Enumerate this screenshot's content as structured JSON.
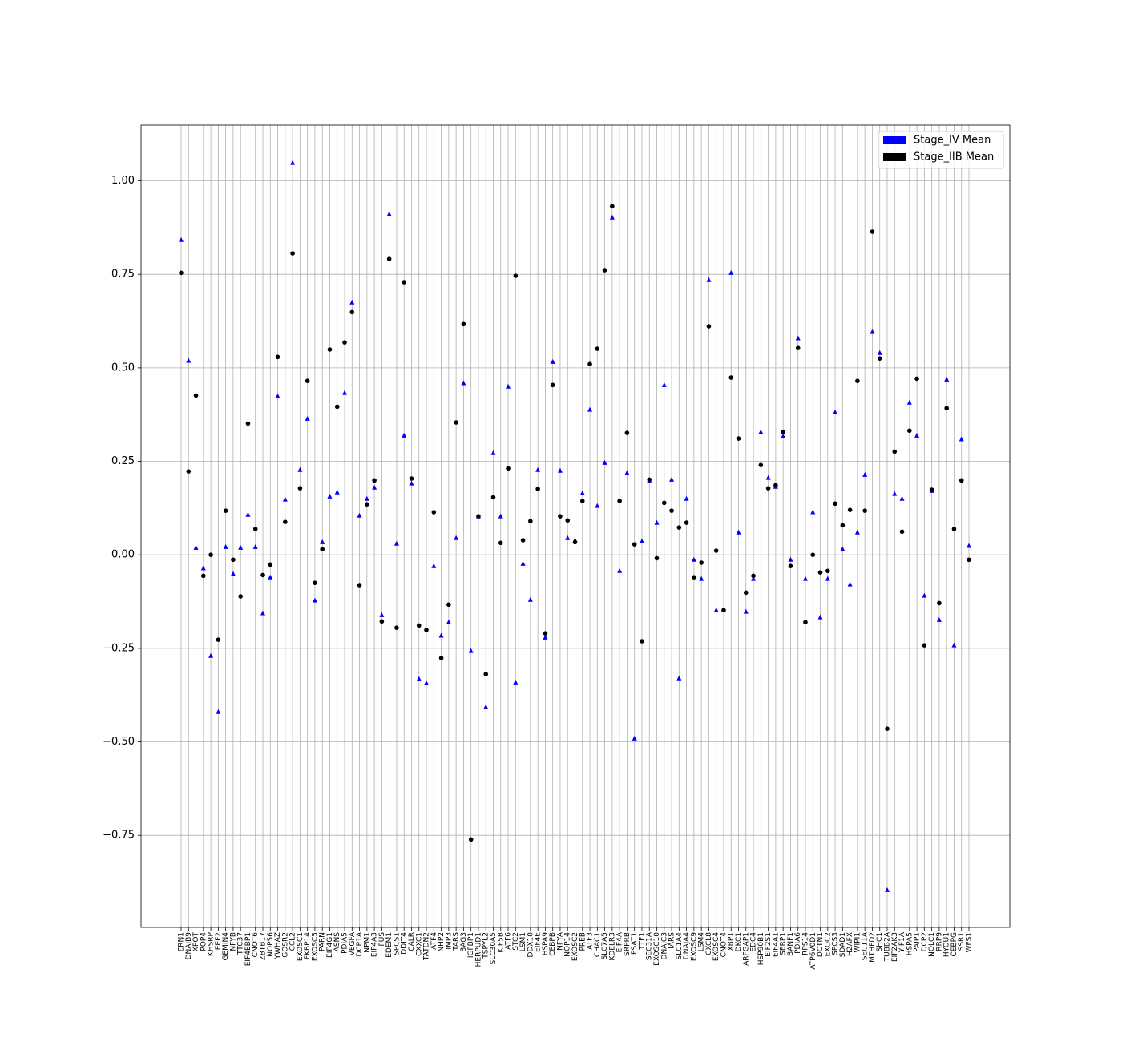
{
  "chart_data": {
    "type": "scatter",
    "categories": [
      "ERN1",
      "DNAJB9",
      "XPOT",
      "POP4",
      "KHSRP",
      "EEF2",
      "GEMIN4",
      "NFYB",
      "TTC37",
      "EIF4EBP1",
      "CNOT6",
      "ZBTB17",
      "NOP56",
      "YWHAZ",
      "GOSR2",
      "CCL2",
      "EXOSC1",
      "FKBP14",
      "EXOSC5",
      "PARN",
      "EIF4G1",
      "ASNS",
      "PDIA5",
      "VEGFA",
      "DCP1A",
      "NPM1",
      "EIF4A3",
      "FUS",
      "EDEM1",
      "SPCS1",
      "DDIT4",
      "CALR",
      "CXXC1",
      "TATDN2",
      "ATF4",
      "NHP2",
      "IMP3",
      "TARS",
      "BAG3",
      "IGFBP1",
      "HERPUD1",
      "TSPYL2",
      "SLC30A5",
      "KIF5B",
      "ATF6",
      "STC2",
      "LSM1",
      "DDX10",
      "EIF4E",
      "HSPA9",
      "CEBPB",
      "NFYA",
      "NOP14",
      "EXOSC2",
      "PREB",
      "ATF3",
      "CHAC1",
      "SLC7A5",
      "KDELR3",
      "EIF4A",
      "SRPRB",
      "PSAT1",
      "TTF1",
      "SEC31A",
      "EXOSC10",
      "DNAJC3",
      "IARS",
      "SLC1A4",
      "DNAJA4",
      "EXOSC9",
      "LSM4",
      "CXCL8",
      "EXOSC4",
      "CNOT4",
      "XBP1",
      "DKC1",
      "ARFGAP1",
      "EDC4",
      "HSP90B1",
      "EIF2S1",
      "EIF4A1",
      "SERP1",
      "BANF1",
      "PDIA6",
      "RPS14",
      "ATP6V0D1",
      "DCTN1",
      "EXOC2",
      "SPCS3",
      "SDAD1",
      "H2AFX",
      "WIPI1",
      "SEC11A",
      "MTHFD2",
      "SHC1",
      "TUBB2A",
      "EIF2AK3",
      "YIF1A",
      "HSPA5",
      "PAIP1",
      "DCP2",
      "NOLC1",
      "RRP9",
      "HYOU1",
      "CEBPG",
      "SSR1",
      "WFS1"
    ],
    "series": [
      {
        "name": "Stage_IV Mean",
        "color": "#0000ff",
        "marker": "triangle",
        "values": [
          0.842,
          0.519,
          0.019,
          -0.036,
          -0.27,
          -0.42,
          0.021,
          -0.051,
          0.019,
          0.107,
          0.021,
          -0.156,
          -0.06,
          0.424,
          0.148,
          1.048,
          0.227,
          0.364,
          -0.122,
          0.034,
          0.156,
          0.167,
          0.433,
          0.675,
          0.105,
          0.15,
          0.18,
          -0.161,
          0.911,
          0.03,
          0.319,
          0.191,
          -0.332,
          -0.343,
          -0.03,
          -0.216,
          -0.18,
          0.045,
          0.459,
          -0.257,
          0.103,
          -0.407,
          0.272,
          0.103,
          0.45,
          -0.341,
          -0.024,
          -0.12,
          0.227,
          -0.221,
          0.516,
          0.225,
          0.045,
          0.039,
          0.165,
          0.388,
          0.131,
          0.246,
          0.902,
          -0.043,
          0.219,
          -0.491,
          0.036,
          0.199,
          0.086,
          0.454,
          0.201,
          -0.33,
          0.15,
          -0.013,
          -0.064,
          0.735,
          -0.148,
          -0.148,
          0.754,
          0.06,
          -0.152,
          -0.064,
          0.328,
          0.206,
          0.182,
          0.317,
          -0.013,
          0.579,
          -0.064,
          0.114,
          -0.167,
          -0.064,
          0.381,
          0.015,
          -0.079,
          0.06,
          0.214,
          0.596,
          0.54,
          -0.896,
          0.163,
          0.15,
          0.407,
          0.319,
          -0.109,
          0.171,
          -0.174,
          0.469,
          -0.242,
          0.309,
          0.024
        ]
      },
      {
        "name": "Stage_IIB Mean",
        "color": "#000000",
        "marker": "circle",
        "values": [
          0.754,
          0.223,
          0.426,
          -0.056,
          0.0,
          -0.227,
          0.118,
          -0.013,
          -0.111,
          0.351,
          0.069,
          -0.054,
          -0.026,
          0.529,
          0.088,
          0.806,
          0.178,
          0.465,
          -0.075,
          0.015,
          0.549,
          0.396,
          0.568,
          0.649,
          -0.081,
          0.135,
          0.199,
          -0.178,
          0.791,
          -0.195,
          0.729,
          0.204,
          -0.189,
          -0.201,
          0.114,
          -0.276,
          -0.133,
          0.354,
          0.617,
          -0.761,
          0.103,
          -0.319,
          0.154,
          0.032,
          0.231,
          0.746,
          0.039,
          0.09,
          0.176,
          -0.21,
          0.454,
          0.103,
          0.092,
          0.034,
          0.144,
          0.51,
          0.551,
          0.761,
          0.932,
          0.144,
          0.326,
          0.028,
          -0.231,
          0.201,
          -0.009,
          0.139,
          0.118,
          0.073,
          0.086,
          -0.06,
          -0.021,
          0.611,
          0.011,
          -0.148,
          0.474,
          0.311,
          -0.101,
          -0.056,
          0.24,
          0.178,
          0.186,
          0.328,
          -0.03,
          0.553,
          -0.18,
          0.0,
          -0.047,
          -0.043,
          0.137,
          0.079,
          0.12,
          0.465,
          0.118,
          0.864,
          0.525,
          -0.465,
          0.276,
          0.062,
          0.332,
          0.471,
          -0.242,
          0.174,
          -0.129,
          0.392,
          0.069,
          0.199,
          -0.013
        ]
      }
    ],
    "ylim": [
      -0.996,
      1.149
    ],
    "yticks": [
      {
        "value": -0.75,
        "label": "−0.75"
      },
      {
        "value": -0.5,
        "label": "−0.50"
      },
      {
        "value": -0.25,
        "label": "−0.25"
      },
      {
        "value": 0,
        "label": "0.00"
      },
      {
        "value": 0.25,
        "label": "0.25"
      },
      {
        "value": 0.5,
        "label": "0.50"
      },
      {
        "value": 0.75,
        "label": "0.75"
      },
      {
        "value": 1.0,
        "label": "1.00"
      }
    ],
    "grid": true,
    "legend": "upper right"
  }
}
